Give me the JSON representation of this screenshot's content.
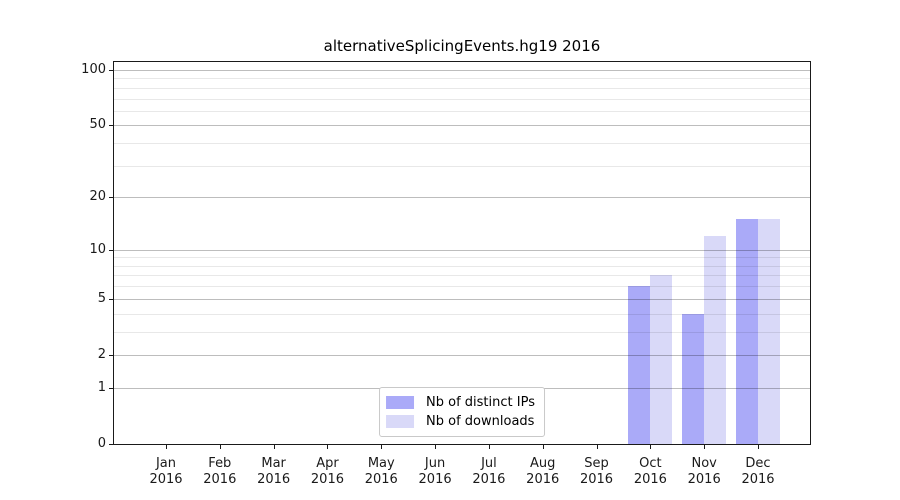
{
  "chart_data": {
    "type": "bar",
    "title": "alternativeSplicingEvents.hg19 2016",
    "x_ticks": {
      "months": [
        "Jan",
        "Feb",
        "Mar",
        "Apr",
        "May",
        "Jun",
        "Jul",
        "Aug",
        "Sep",
        "Oct",
        "Nov",
        "Dec"
      ],
      "year": "2016"
    },
    "series": [
      {
        "name": "Nb of distinct IPs",
        "color": "#aaaaf8",
        "values": [
          0,
          0,
          0,
          0,
          0,
          0,
          0,
          0,
          0,
          6,
          4,
          15
        ]
      },
      {
        "name": "Nb of downloads",
        "color": "#d9d9f8",
        "values": [
          0,
          0,
          0,
          0,
          0,
          0,
          0,
          0,
          0,
          7,
          12,
          15
        ]
      }
    ],
    "y_axis": {
      "scale": "log1p",
      "ylim": [
        0,
        100
      ],
      "major_ticks": [
        0,
        1,
        2,
        5,
        10,
        20,
        50,
        100
      ],
      "minor_ticks": [
        3,
        4,
        6,
        7,
        8,
        9,
        30,
        40,
        60,
        70,
        80,
        90
      ]
    },
    "grid": true,
    "legend_position": "lower center"
  },
  "colors": {
    "spine": "#1a1a1a",
    "grid_major": "rgba(0,0,0,0.26)",
    "grid_minor": "rgba(0,0,0,0.09)",
    "background": "#ffffff"
  }
}
